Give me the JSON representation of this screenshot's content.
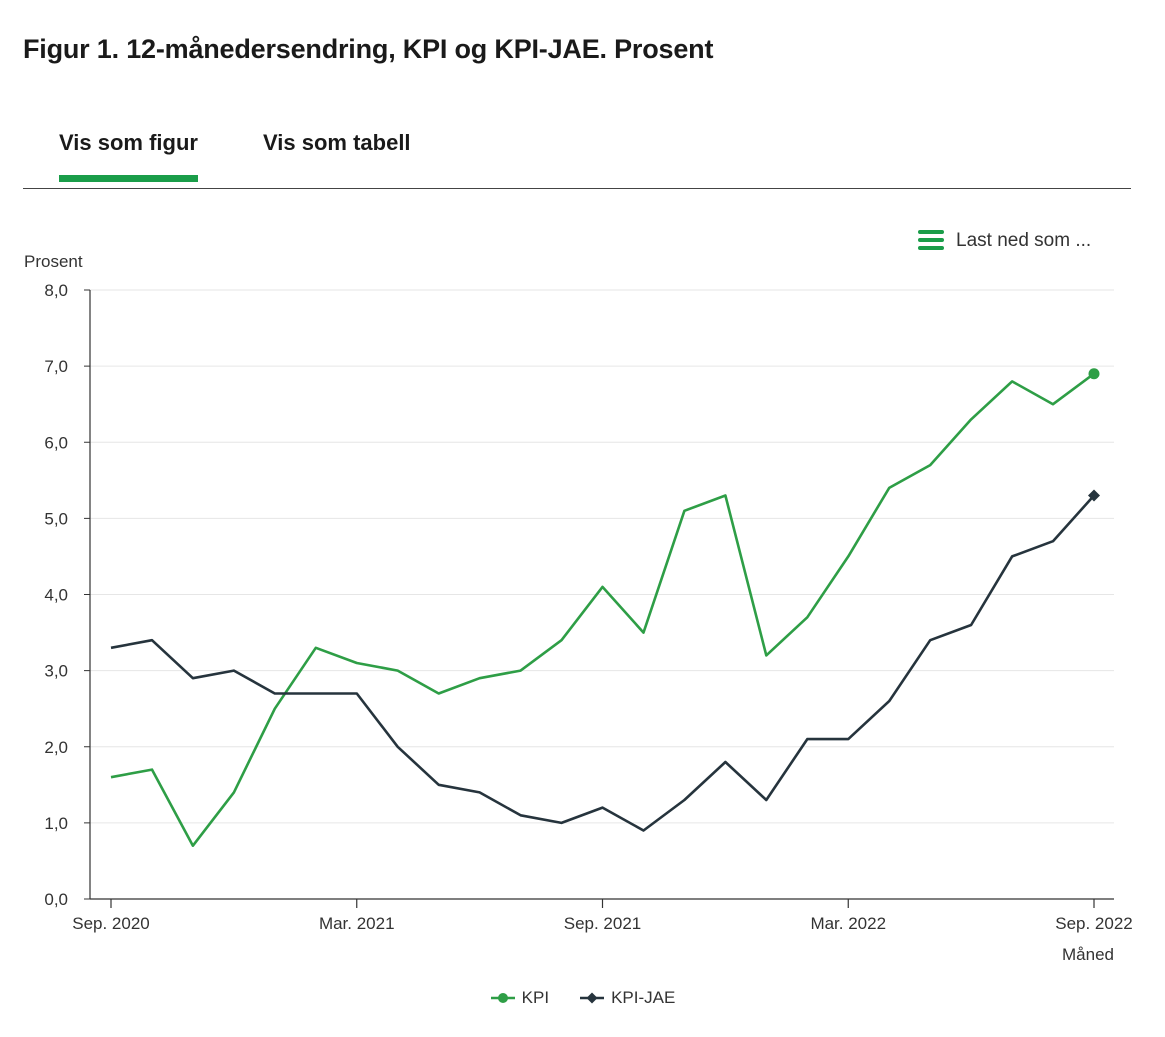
{
  "page": {
    "title": "Figur 1. 12-månedersendring, KPI og KPI-JAE. Prosent",
    "tabs": [
      {
        "label": "Vis som figur",
        "active": true
      },
      {
        "label": "Vis som tabell",
        "active": false
      }
    ],
    "download_label": "Last ned som ...",
    "download_icon": "menu-icon"
  },
  "colors": {
    "accent": "#1a9d49",
    "kpi": "#2e9e46",
    "kpi_jae": "#26343d",
    "grid": "#e6e6e6",
    "axis": "#333333"
  },
  "chart_data": {
    "type": "line",
    "ylabel": "Prosent",
    "xlabel": "Måned",
    "ylim": [
      0,
      8
    ],
    "yticks": [
      "0,0",
      "1,0",
      "2,0",
      "3,0",
      "4,0",
      "5,0",
      "6,0",
      "7,0",
      "8,0"
    ],
    "xticks": [
      {
        "label": "Sep. 2020",
        "index": 0
      },
      {
        "label": "Mar. 2021",
        "index": 6
      },
      {
        "label": "Sep. 2021",
        "index": 12
      },
      {
        "label": "Mar. 2022",
        "index": 18
      },
      {
        "label": "Sep. 2022",
        "index": 24
      }
    ],
    "x_start": "2020-09",
    "x_end": "2022-09",
    "grid": true,
    "legend_position": "bottom-center",
    "series": [
      {
        "name": "KPI",
        "marker": "circle",
        "values": [
          1.6,
          1.7,
          0.7,
          1.4,
          2.5,
          3.3,
          3.1,
          3.0,
          2.7,
          2.9,
          3.0,
          3.4,
          4.1,
          3.5,
          5.1,
          5.3,
          3.2,
          3.7,
          4.5,
          5.4,
          5.7,
          6.3,
          6.8,
          6.5,
          6.9
        ]
      },
      {
        "name": "KPI-JAE",
        "marker": "diamond",
        "values": [
          3.3,
          3.4,
          2.9,
          3.0,
          2.7,
          2.7,
          2.7,
          2.0,
          1.5,
          1.4,
          1.1,
          1.0,
          1.2,
          0.9,
          1.3,
          1.8,
          1.3,
          2.1,
          2.1,
          2.6,
          3.4,
          3.6,
          4.5,
          4.7,
          5.3
        ]
      }
    ]
  }
}
